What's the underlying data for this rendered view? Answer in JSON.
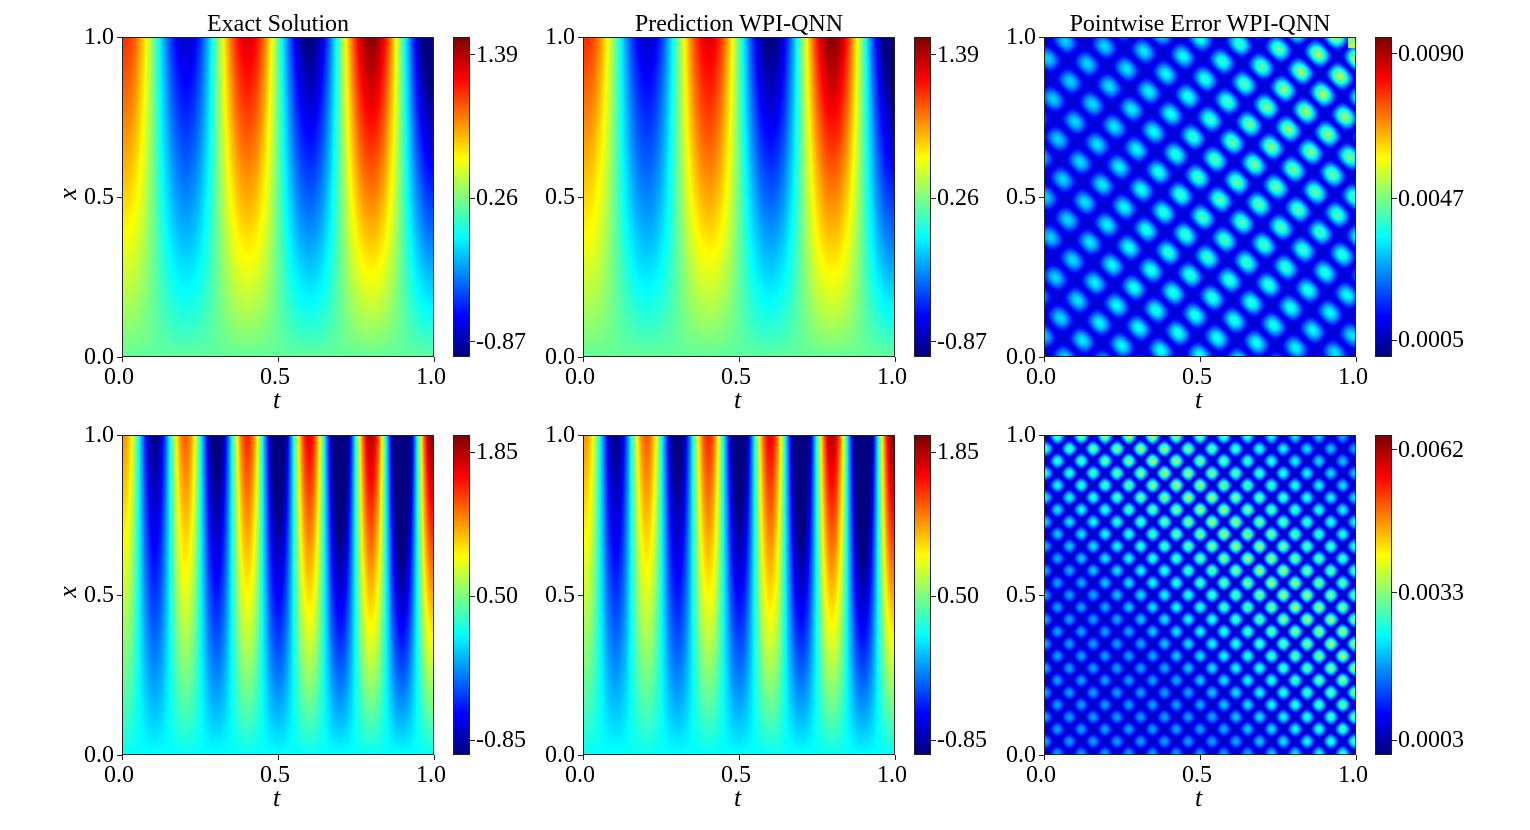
{
  "chart_data": [
    {
      "type": "heatmap",
      "title": "Exact Solution",
      "xlabel": "t",
      "ylabel": "x",
      "xlim": [
        0,
        1
      ],
      "ylim": [
        0,
        1
      ],
      "xticks": [
        "0.0",
        "0.5",
        "1.0"
      ],
      "yticks": [
        "0.0",
        "0.5",
        "1.0"
      ],
      "colormap": "jet",
      "colorbar": {
        "range": [
          -0.99,
          1.53
        ],
        "ticks": [
          1.39,
          0.26,
          -0.87
        ],
        "tick_labels": [
          "1.39",
          "0.26",
          "-0.87"
        ]
      }
    },
    {
      "type": "heatmap",
      "title": "Prediction WPI-QNN",
      "xlabel": "t",
      "ylabel": "",
      "xlim": [
        0,
        1
      ],
      "ylim": [
        0,
        1
      ],
      "xticks": [
        "0.0",
        "0.5",
        "1.0"
      ],
      "yticks": [
        "0.0",
        "0.5",
        "1.0"
      ],
      "colormap": "jet",
      "colorbar": {
        "range": [
          -0.99,
          1.53
        ],
        "ticks": [
          1.39,
          0.26,
          -0.87
        ],
        "tick_labels": [
          "1.39",
          "0.26",
          "-0.87"
        ]
      }
    },
    {
      "type": "heatmap",
      "title": "Pointwise Error WPI-QNN",
      "xlabel": "t",
      "ylabel": "",
      "xlim": [
        0,
        1
      ],
      "ylim": [
        0,
        1
      ],
      "xticks": [
        "0.0",
        "0.5",
        "1.0"
      ],
      "yticks": [
        "0.0",
        "0.5",
        "1.0"
      ],
      "colormap": "jet",
      "colorbar": {
        "range": [
          0.0,
          0.0095
        ],
        "ticks": [
          0.009,
          0.0047,
          0.0005
        ],
        "tick_labels": [
          "0.0090",
          "0.0047",
          "0.0005"
        ]
      }
    },
    {
      "type": "heatmap",
      "title": "",
      "xlabel": "t",
      "ylabel": "x",
      "xlim": [
        0,
        1
      ],
      "ylim": [
        0,
        1
      ],
      "xticks": [
        "0.0",
        "0.5",
        "1.0"
      ],
      "yticks": [
        "0.0",
        "0.5",
        "1.0"
      ],
      "colormap": "jet",
      "colorbar": {
        "range": [
          -0.99,
          2.01
        ],
        "ticks": [
          1.85,
          0.5,
          -0.85
        ],
        "tick_labels": [
          "1.85",
          "0.50",
          "-0.85"
        ]
      }
    },
    {
      "type": "heatmap",
      "title": "",
      "xlabel": "t",
      "ylabel": "",
      "xlim": [
        0,
        1
      ],
      "ylim": [
        0,
        1
      ],
      "xticks": [
        "0.0",
        "0.5",
        "1.0"
      ],
      "yticks": [
        "0.0",
        "0.5",
        "1.0"
      ],
      "colormap": "jet",
      "colorbar": {
        "range": [
          -0.99,
          2.01
        ],
        "ticks": [
          1.85,
          0.5,
          -0.85
        ],
        "tick_labels": [
          "1.85",
          "0.50",
          "-0.85"
        ]
      }
    },
    {
      "type": "heatmap",
      "title": "",
      "xlabel": "t",
      "ylabel": "",
      "xlim": [
        0,
        1
      ],
      "ylim": [
        0,
        1
      ],
      "xticks": [
        "0.0",
        "0.5",
        "1.0"
      ],
      "yticks": [
        "0.0",
        "0.5",
        "1.0"
      ],
      "colormap": "jet",
      "colorbar": {
        "range": [
          0.0,
          0.0065
        ],
        "ticks": [
          0.0062,
          0.0033,
          0.0003
        ],
        "tick_labels": [
          "0.0062",
          "0.0033",
          "0.0003"
        ]
      }
    }
  ]
}
